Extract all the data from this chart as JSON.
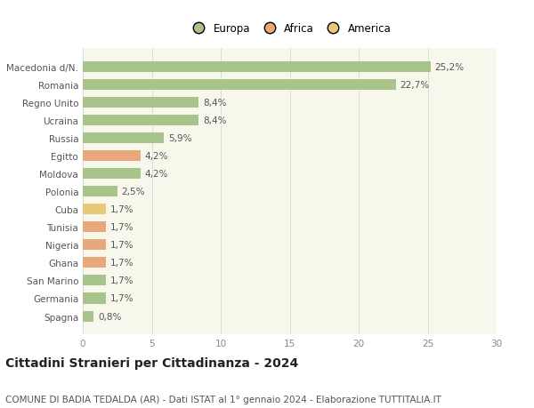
{
  "title": "Cittadini Stranieri per Cittadinanza - 2024",
  "subtitle": "COMUNE DI BADIA TEDALDA (AR) - Dati ISTAT al 1° gennaio 2024 - Elaborazione TUTTITALIA.IT",
  "categories": [
    "Macedonia d/N.",
    "Romania",
    "Regno Unito",
    "Ucraina",
    "Russia",
    "Egitto",
    "Moldova",
    "Polonia",
    "Cuba",
    "Tunisia",
    "Nigeria",
    "Ghana",
    "San Marino",
    "Germania",
    "Spagna"
  ],
  "values": [
    25.2,
    22.7,
    8.4,
    8.4,
    5.9,
    4.2,
    4.2,
    2.5,
    1.7,
    1.7,
    1.7,
    1.7,
    1.7,
    1.7,
    0.8
  ],
  "labels": [
    "25,2%",
    "22,7%",
    "8,4%",
    "8,4%",
    "5,9%",
    "4,2%",
    "4,2%",
    "2,5%",
    "1,7%",
    "1,7%",
    "1,7%",
    "1,7%",
    "1,7%",
    "1,7%",
    "0,8%"
  ],
  "colors": [
    "#a8c48a",
    "#a8c48a",
    "#a8c48a",
    "#a8c48a",
    "#a8c48a",
    "#e8a87c",
    "#a8c48a",
    "#a8c48a",
    "#e8c97a",
    "#e8a87c",
    "#e8a87c",
    "#e8a87c",
    "#a8c48a",
    "#a8c48a",
    "#a8c48a"
  ],
  "legend": [
    {
      "label": "Europa",
      "color": "#a8c48a"
    },
    {
      "label": "Africa",
      "color": "#e8a87c"
    },
    {
      "label": "America",
      "color": "#e8c97a"
    }
  ],
  "xlim": [
    0,
    30
  ],
  "xticks": [
    0,
    5,
    10,
    15,
    20,
    25,
    30
  ],
  "chart_bg": "#f7f7ec",
  "fig_bg": "#ffffff",
  "grid_color": "#dddddd",
  "bar_height": 0.6,
  "title_fontsize": 10,
  "subtitle_fontsize": 7.5,
  "label_fontsize": 7.5,
  "tick_fontsize": 7.5,
  "legend_fontsize": 8.5,
  "ytick_fontsize": 7.5,
  "label_color": "#555555",
  "ytick_color": "#555555",
  "xtick_color": "#888888"
}
